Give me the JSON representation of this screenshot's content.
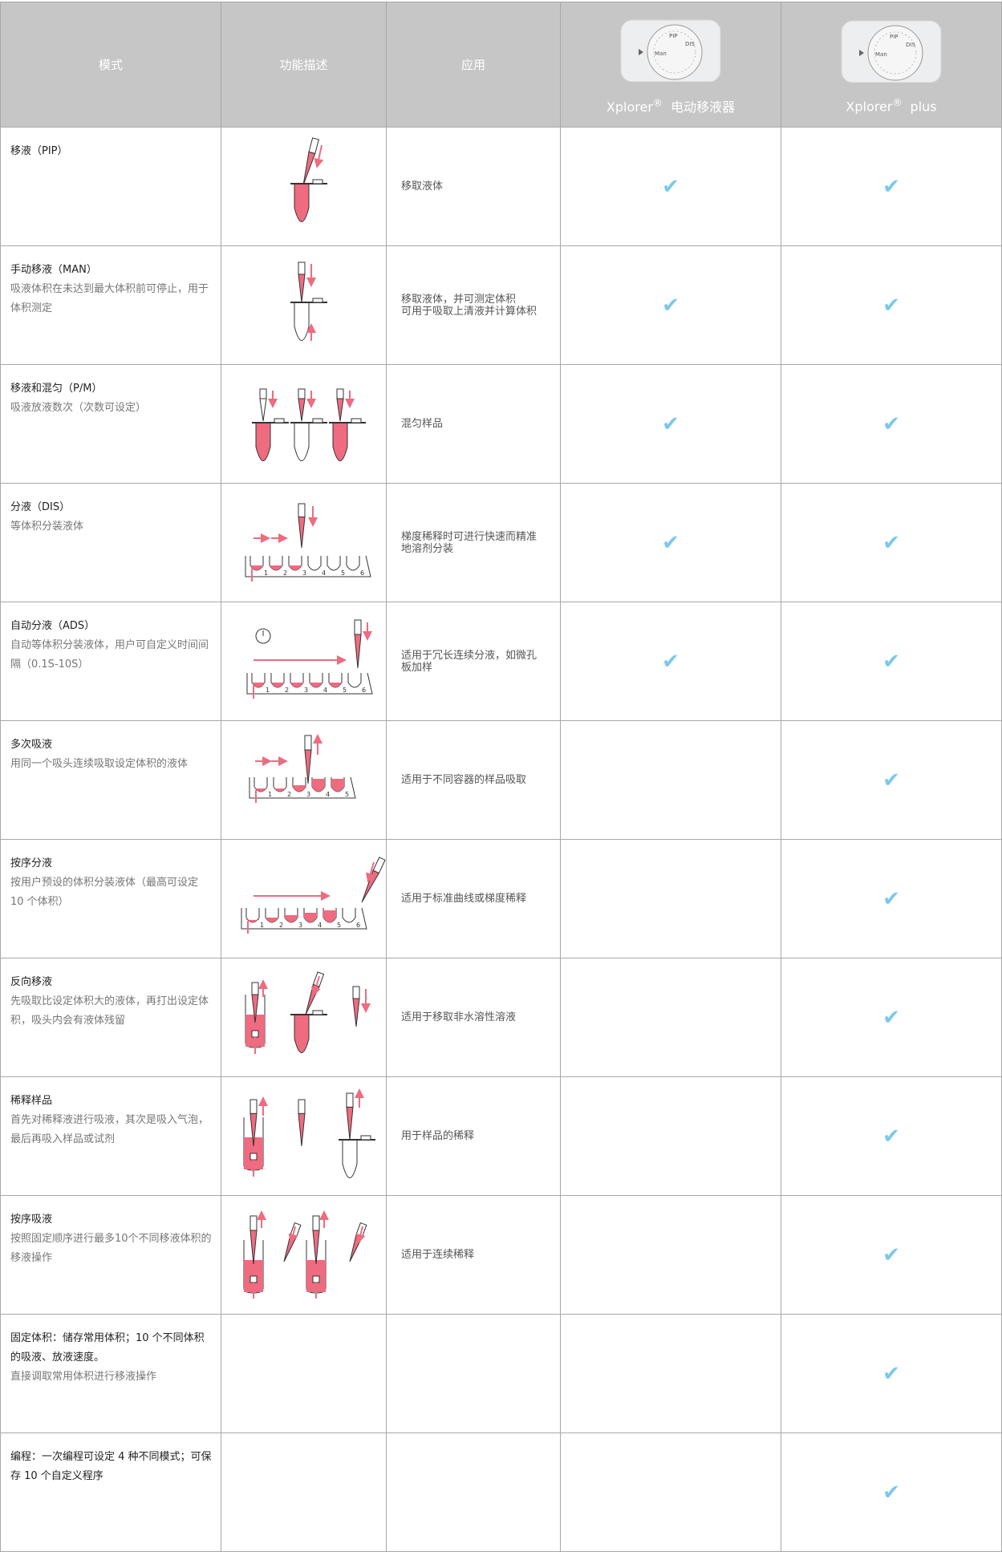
{
  "header": {
    "col_mode": "模式",
    "col_desc": "功能描述",
    "col_app": "应用",
    "product1": {
      "name": "Xplorer",
      "reg": "®",
      "suffix": "电动移液器",
      "image": "pipette-dial-image"
    },
    "product2": {
      "name": "Xplorer",
      "reg": "®",
      "suffix": "plus",
      "image": "pipette-dial-plus-image"
    }
  },
  "check_color": "#7cc8ec",
  "accent_color": "#ef6b80",
  "rows": [
    {
      "title": "移液（PIP）",
      "desc": "",
      "app": "移取液体",
      "xplorer": true,
      "plus": true
    },
    {
      "title": "手动移液（MAN）",
      "desc": "吸液体积在未达到最大体积前可停止，用于体积测定",
      "app": "移取液体，并可测定体积\n可用于吸取上清液并计算体积",
      "xplorer": true,
      "plus": true
    },
    {
      "title": "移液和混匀（P/M）",
      "desc": "吸液放液数次（次数可设定）",
      "app": "混匀样品",
      "xplorer": true,
      "plus": true
    },
    {
      "title": "分液（DIS）",
      "desc": "等体积分装液体",
      "app": "梯度稀释时可进行快速而精准地溶剂分装",
      "xplorer": true,
      "plus": true
    },
    {
      "title": "自动分液（ADS）",
      "desc": "自动等体积分装液体，用户可自定义时间间隔（0.1S-10S）",
      "app": "适用于冗长连续分液，如微孔板加样",
      "xplorer": true,
      "plus": true
    },
    {
      "title": "多次吸液",
      "desc": "用同一个吸头连续吸取设定体积的液体",
      "app": "适用于不同容器的样品吸取",
      "xplorer": false,
      "plus": true
    },
    {
      "title": "按序分液",
      "desc": "按用户预设的体积分装液体（最高可设定 10 个体积）",
      "app": "适用于标准曲线或梯度稀释",
      "xplorer": false,
      "plus": true
    },
    {
      "title": "反向移液",
      "desc": "先吸取比设定体积大的液体，再打出设定体积，吸头内会有液体残留",
      "app": "适用于移取非水溶性溶液",
      "xplorer": false,
      "plus": true
    },
    {
      "title": "稀释样品",
      "desc": "首先对稀释液进行吸液，其次是吸入气泡，最后再吸入样品或试剂",
      "app": "用于样品的稀释",
      "xplorer": false,
      "plus": true
    },
    {
      "title": "按序吸液",
      "desc": "按照固定顺序进行最多10个不同移液体积的移液操作",
      "app": "适用于连续稀释",
      "xplorer": false,
      "plus": true
    },
    {
      "title": "固定体积：储存常用体积；10 个不同体积的吸液、放液速度。",
      "desc": "直接调取常用体积进行移液操作",
      "app": "",
      "xplorer": false,
      "plus": true
    },
    {
      "title": "编程：一次编程可设定 4 种不同模式；可保存 10 个自定义程序",
      "desc": "",
      "app": "",
      "xplorer": false,
      "plus": true
    }
  ],
  "check_symbol": "✔"
}
